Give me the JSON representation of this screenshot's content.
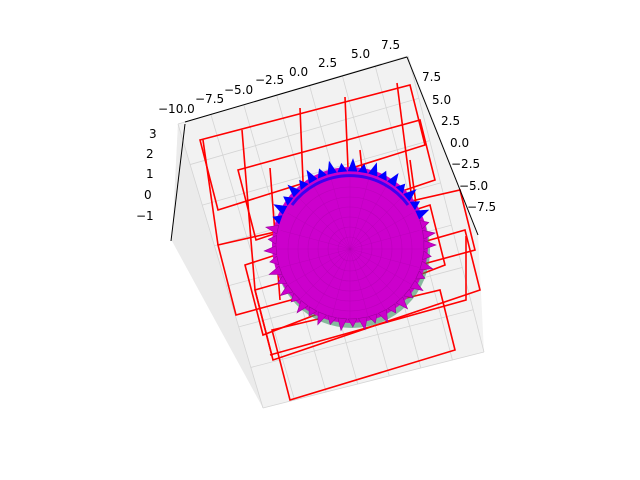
{
  "chart_data": {
    "type": "3d-surface-wireframe",
    "title": "",
    "xlabel": "",
    "ylabel": "",
    "zlabel": "",
    "x_ticks": [
      "−10.0",
      "−7.5",
      "−5.0",
      "−2.5",
      "0.0",
      "2.5",
      "5.0",
      "7.5"
    ],
    "y_ticks": [
      "7.5",
      "5.0",
      "2.5",
      "0.0",
      "−2.5",
      "−5.0",
      "−7.5"
    ],
    "z_ticks": [
      "3",
      "2",
      "1",
      "0",
      "−1"
    ],
    "xlim": [
      -10,
      8
    ],
    "ylim": [
      -9,
      9
    ],
    "zlim": [
      -1.5,
      3.5
    ],
    "grid": true,
    "series": [
      {
        "kind": "wireframe-boxes",
        "color": "#ff0000"
      },
      {
        "kind": "spherical-surface",
        "color": "#cc00cc",
        "edge_color": "#0000ff"
      },
      {
        "kind": "surface-shadow",
        "color": "#2e8b57"
      }
    ]
  }
}
